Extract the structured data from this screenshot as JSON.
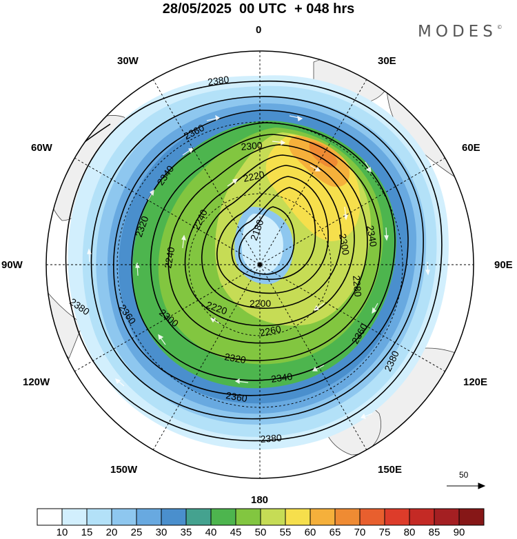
{
  "title": "28/05/2025  00 UTC  + 048 hrs",
  "brand": {
    "text": "MODES",
    "mark": "©"
  },
  "map": {
    "projection": "polar stereographic, north pole centered",
    "longitude_labels": {
      "lon_0": "0",
      "lon_30e": "30E",
      "lon_60e": "60E",
      "lon_90e": "90E",
      "lon_120e": "120E",
      "lon_150e": "150E",
      "lon_180": "180",
      "lon_150w": "150W",
      "lon_120w": "120W",
      "lon_90w": "90W",
      "lon_60w": "60W",
      "lon_30w": "30W"
    },
    "contour_labels": {
      "c2380_top": "2380",
      "c2360_upper": "2360",
      "c2340_left": "2340",
      "c2300_top": "2300",
      "c2220_top": "2220",
      "c2240_left": "2240",
      "c2180": "2180",
      "c2300_right": "2300",
      "c2340_right": "2340",
      "c2280_right": "2280",
      "c2360_right": "2360",
      "c2380_right": "2380",
      "c2260_bottom": "2260",
      "c2200_bottom": "2200",
      "c2220_bottom": "2220",
      "c2320_bottom": "2320",
      "c2340_bottom": "2340",
      "c2360_bottom": "2360",
      "c2380_bottom": "2380",
      "c2300_lowerleft": "2300",
      "c2360_left": "2360",
      "c2380_left": "2380",
      "c2320_left": "2320",
      "c2240_inner": "2240"
    },
    "vector_reference": "50",
    "colors": {
      "land": "#efefef",
      "coast": "#444444",
      "grid": "#000000"
    }
  },
  "colorbar": {
    "labels": [
      "10",
      "15",
      "20",
      "25",
      "30",
      "35",
      "40",
      "45",
      "50",
      "55",
      "60",
      "65",
      "70",
      "75",
      "80",
      "85",
      "90"
    ],
    "colors": [
      "#ffffff",
      "#d2effd",
      "#b3e1f8",
      "#8ec7ef",
      "#68a9e0",
      "#4a8fcd",
      "#44a28f",
      "#4db54e",
      "#82c640",
      "#c6dc55",
      "#f6df4c",
      "#f5b03b",
      "#ef8b33",
      "#e85f2e",
      "#dd3c2a",
      "#c42a25",
      "#a41f22",
      "#861717"
    ]
  }
}
